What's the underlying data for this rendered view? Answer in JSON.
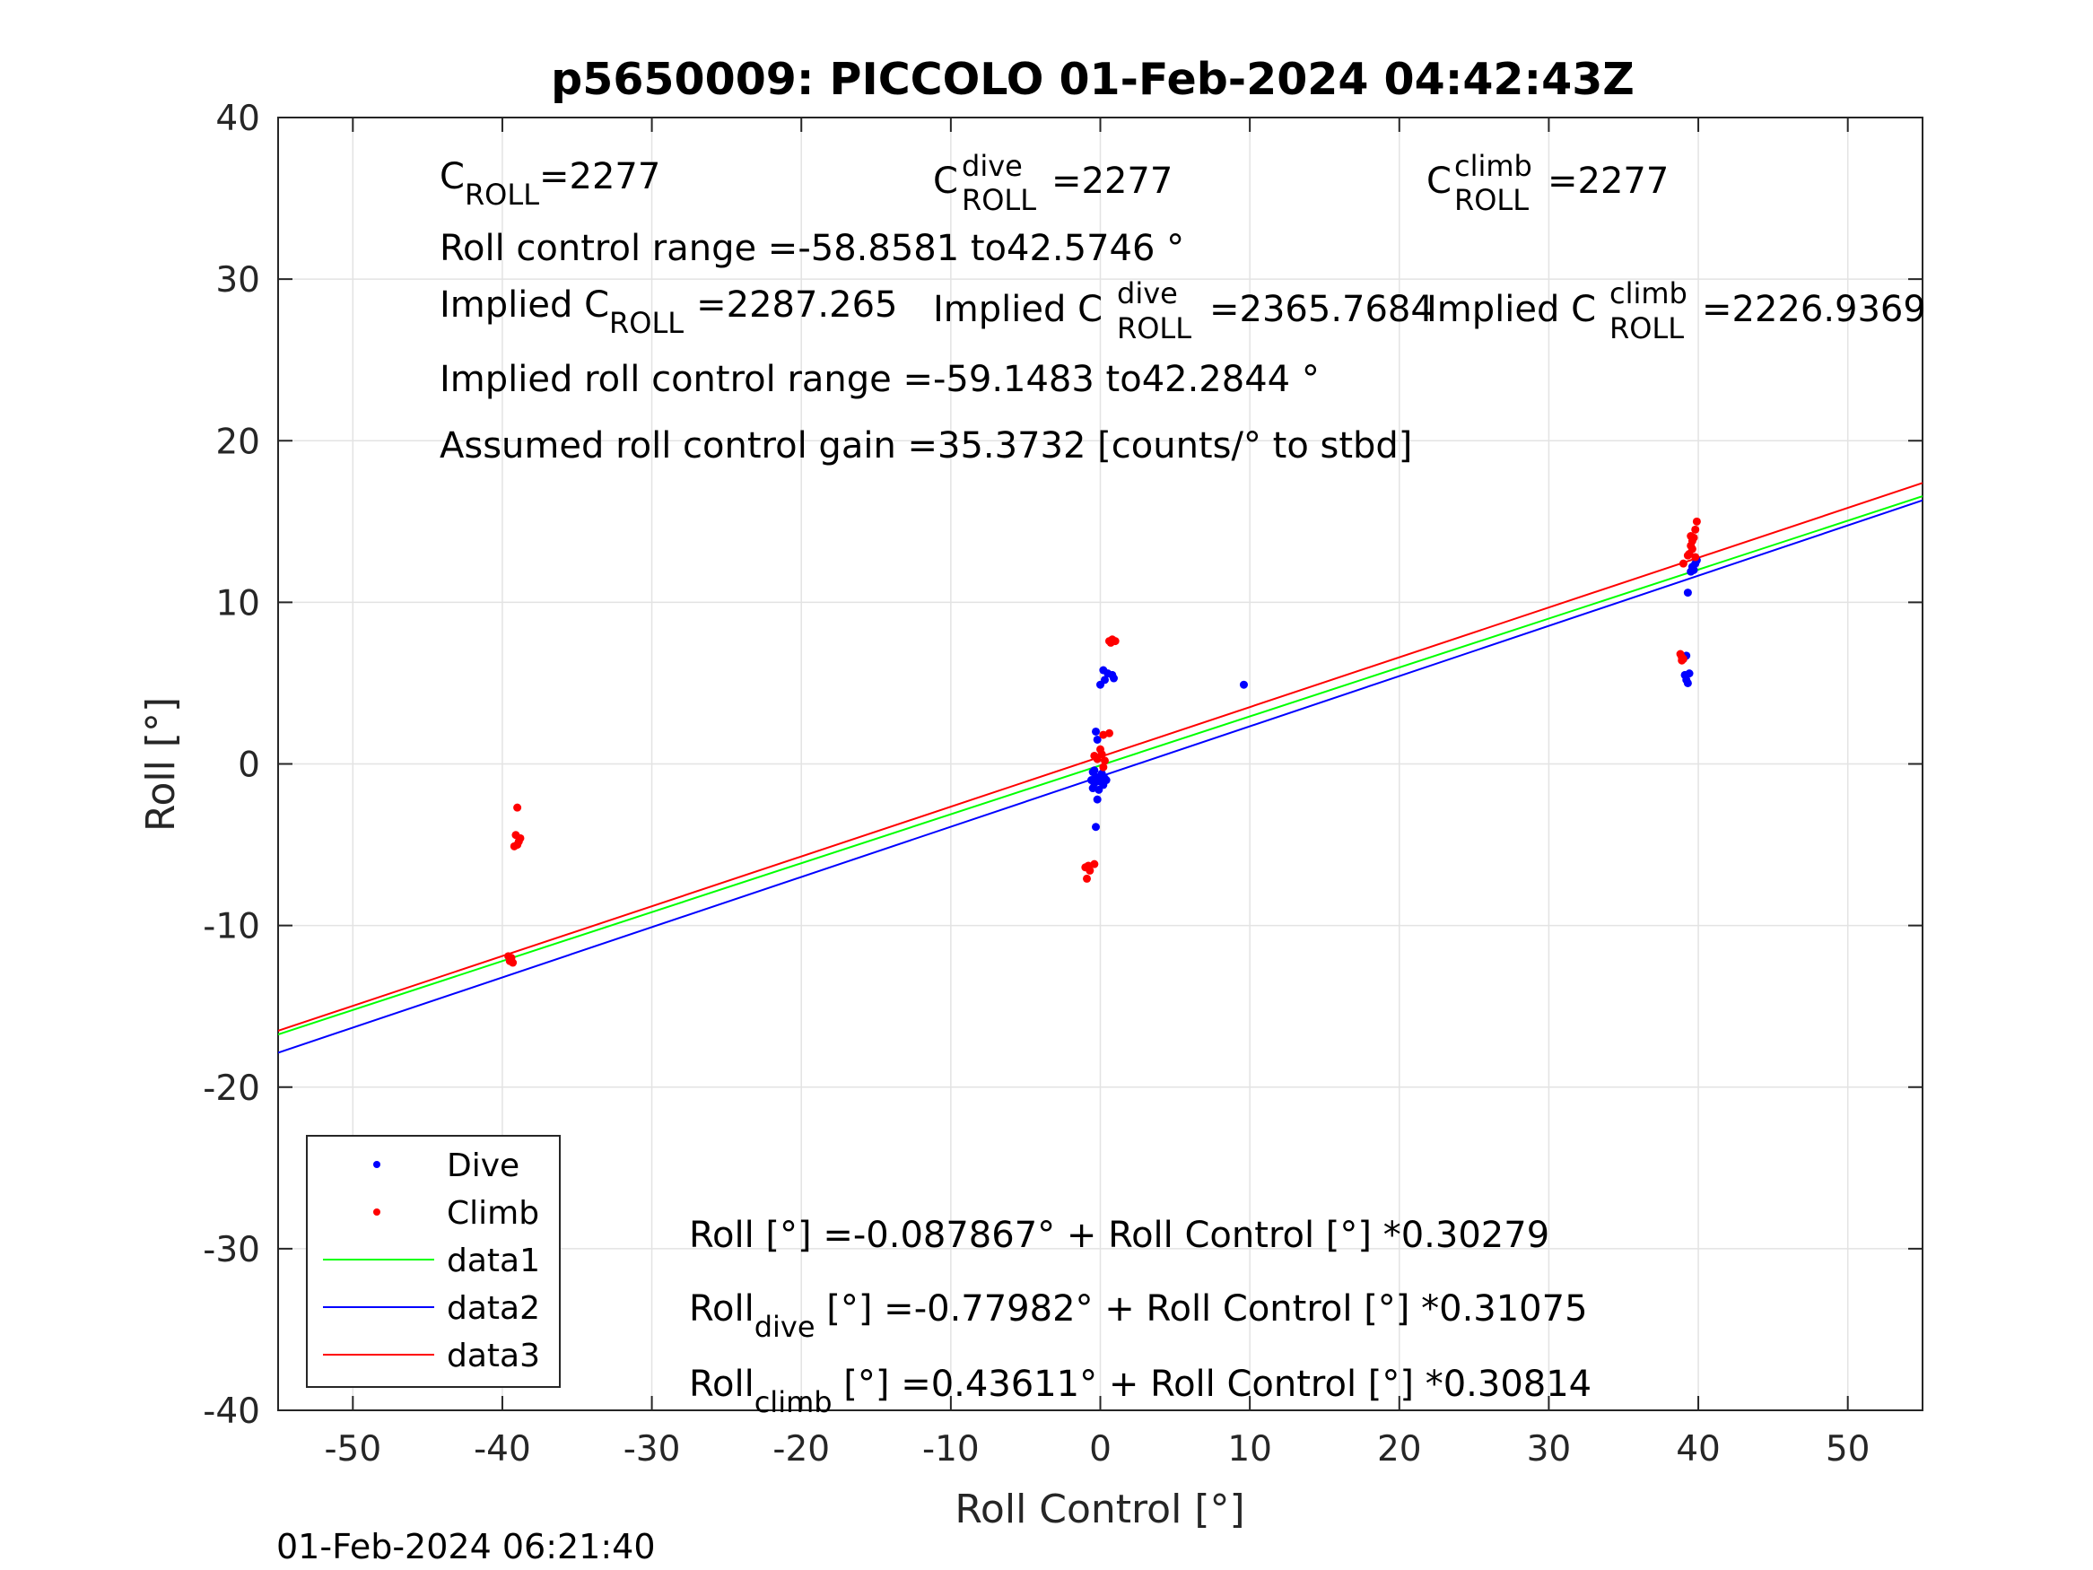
{
  "chart_data": {
    "type": "scatter",
    "title": "p5650009: PICCOLO 01-Feb-2024 04:42:43Z",
    "xlabel": "Roll Control [°]",
    "ylabel": "Roll [°]",
    "xlim": [
      -55,
      55
    ],
    "ylim": [
      -40,
      40
    ],
    "xticks": [
      -50,
      -40,
      -30,
      -20,
      -10,
      0,
      10,
      20,
      30,
      40,
      50
    ],
    "yticks": [
      -40,
      -30,
      -20,
      -10,
      0,
      10,
      20,
      30,
      40
    ],
    "xtick_labels": [
      "-50",
      "-40",
      "-30",
      "-20",
      "-10",
      "0",
      "10",
      "20",
      "30",
      "40",
      "50"
    ],
    "ytick_labels": [
      "-40",
      "-30",
      "-20",
      "-10",
      "0",
      "10",
      "20",
      "30",
      "40"
    ],
    "grid": true,
    "legend_position": "bottom-left",
    "series": [
      {
        "name": "Dive",
        "kind": "points",
        "color": "#0000ff",
        "points": [
          [
            -0.3,
            2.0
          ],
          [
            -0.2,
            1.5
          ],
          [
            -0.5,
            -0.5
          ],
          [
            -0.3,
            -0.8
          ],
          [
            -0.6,
            -1.0
          ],
          [
            -0.4,
            -1.2
          ],
          [
            -0.2,
            -0.9
          ],
          [
            0.0,
            -1.1
          ],
          [
            0.2,
            -1.3
          ],
          [
            0.3,
            -0.9
          ],
          [
            -0.5,
            -1.5
          ],
          [
            -0.1,
            -1.6
          ],
          [
            0.1,
            -0.6
          ],
          [
            0.4,
            -1.0
          ],
          [
            -0.4,
            -0.4
          ],
          [
            -0.2,
            -2.2
          ],
          [
            -0.3,
            -3.9
          ],
          [
            0.0,
            4.9
          ],
          [
            0.3,
            5.2
          ],
          [
            0.5,
            5.6
          ],
          [
            0.2,
            5.8
          ],
          [
            0.8,
            5.5
          ],
          [
            0.9,
            5.3
          ],
          [
            9.6,
            4.9
          ],
          [
            39.0,
            6.5
          ],
          [
            39.1,
            5.5
          ],
          [
            39.2,
            5.2
          ],
          [
            39.3,
            5.0
          ],
          [
            39.4,
            5.6
          ],
          [
            39.2,
            6.7
          ],
          [
            39.3,
            10.6
          ],
          [
            39.5,
            11.9
          ],
          [
            39.6,
            12.2
          ],
          [
            39.8,
            12.4
          ],
          [
            39.7,
            12.0
          ],
          [
            39.9,
            12.6
          ]
        ]
      },
      {
        "name": "Climb",
        "kind": "points",
        "color": "#ff0000",
        "points": [
          [
            -39.5,
            -12.2
          ],
          [
            -39.4,
            -12.0
          ],
          [
            -39.3,
            -12.3
          ],
          [
            -39.6,
            -11.9
          ],
          [
            -39.0,
            -2.7
          ],
          [
            -39.1,
            -4.4
          ],
          [
            -38.9,
            -4.8
          ],
          [
            -39.2,
            -5.1
          ],
          [
            -38.8,
            -4.6
          ],
          [
            -39.0,
            -5.0
          ],
          [
            -1.0,
            -6.4
          ],
          [
            -0.9,
            -7.1
          ],
          [
            -0.7,
            -6.6
          ],
          [
            -0.4,
            -6.2
          ],
          [
            -0.8,
            -6.3
          ],
          [
            0.6,
            7.6
          ],
          [
            0.8,
            7.7
          ],
          [
            1.0,
            7.6
          ],
          [
            0.7,
            7.5
          ],
          [
            0.2,
            1.8
          ],
          [
            0.6,
            1.9
          ],
          [
            -0.2,
            0.3
          ],
          [
            0.1,
            0.6
          ],
          [
            0.0,
            0.9
          ],
          [
            0.3,
            0.2
          ],
          [
            -0.4,
            0.5
          ],
          [
            0.2,
            -0.2
          ],
          [
            38.8,
            6.8
          ],
          [
            38.9,
            6.6
          ],
          [
            39.0,
            6.5
          ],
          [
            38.9,
            6.4
          ],
          [
            39.0,
            12.4
          ],
          [
            39.3,
            12.9
          ],
          [
            39.5,
            13.5
          ],
          [
            39.6,
            13.8
          ],
          [
            39.7,
            14.0
          ],
          [
            39.8,
            14.5
          ],
          [
            39.9,
            15.0
          ],
          [
            39.6,
            13.3
          ],
          [
            39.8,
            12.8
          ],
          [
            39.5,
            14.1
          ],
          [
            39.4,
            13.0
          ]
        ]
      },
      {
        "name": "data1",
        "kind": "line",
        "color": "#00ff00",
        "intercept": -0.087867,
        "slope": 0.30279
      },
      {
        "name": "data2",
        "kind": "line",
        "color": "#0000ff",
        "intercept": -0.77982,
        "slope": 0.31075
      },
      {
        "name": "data3",
        "kind": "line",
        "color": "#ff0000",
        "intercept": 0.43611,
        "slope": 0.30814
      }
    ],
    "annotations": {
      "c_roll": {
        "base": "C",
        "sub": "ROLL",
        "value": "=2277"
      },
      "c_roll_dive": {
        "base": "C",
        "sup": "dive",
        "sub": "ROLL",
        "value": "=2277"
      },
      "c_roll_climb": {
        "base": "C",
        "sup": "climb",
        "sub": "ROLL",
        "value": "=2277"
      },
      "roll_control_range": "Roll control range =-58.8581 to42.5746 °",
      "implied_c_roll": {
        "base": "Implied C",
        "sub": "ROLL",
        "value": "=2287.265"
      },
      "implied_c_roll_dive": {
        "base": "Implied C",
        "sup": "dive",
        "sub": "ROLL",
        "value": "=2365.7684"
      },
      "implied_c_roll_climb": {
        "base": "Implied C",
        "sup": "climb",
        "sub": "ROLL",
        "value": "=2226.9369"
      },
      "implied_roll_control_range": "Implied roll control range =-59.1483 to42.2844 °",
      "assumed_gain": "Assumed roll control gain =35.3732 [counts/° to stbd]",
      "fit_all": "Roll [°] =-0.087867° + Roll Control [°] *0.30279",
      "fit_dive": {
        "base": "Roll",
        "sub": "dive",
        "rest": " [°] =-0.77982° + Roll Control [°] *0.31075"
      },
      "fit_climb": {
        "base": "Roll",
        "sub": "climb",
        "rest": " [°] =0.43611° + Roll Control [°] *0.30814"
      }
    },
    "timestamp": "01-Feb-2024 06:21:40"
  }
}
